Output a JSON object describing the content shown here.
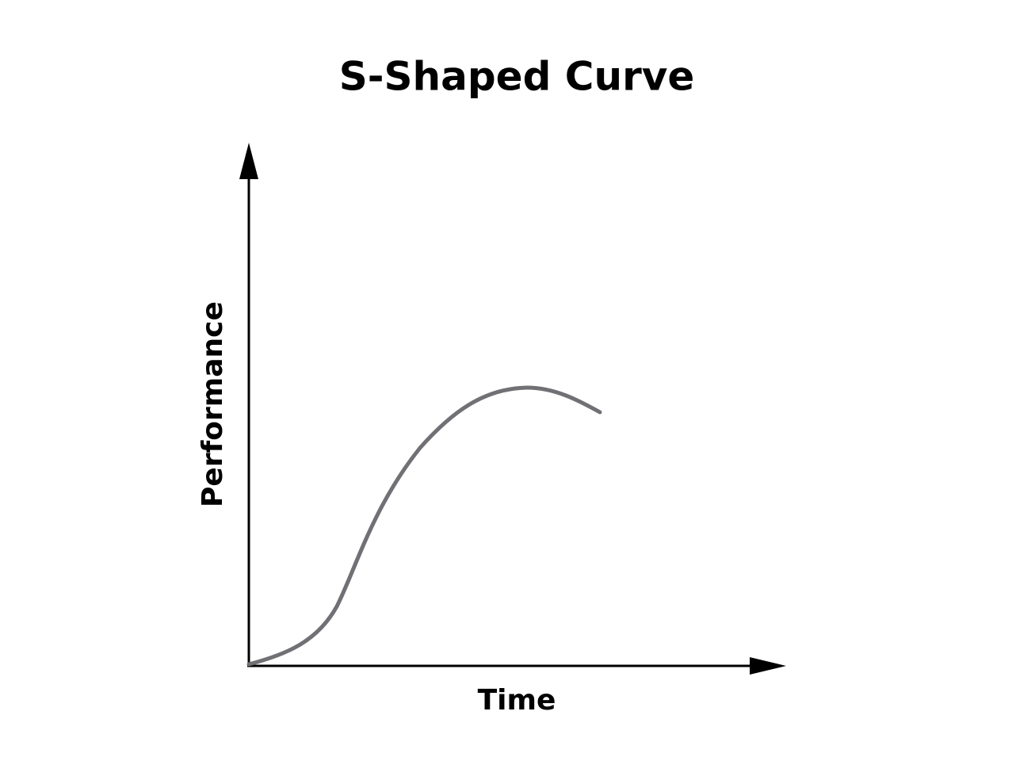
{
  "title": "S-Shaped Curve",
  "axes": {
    "x_label": "Time",
    "y_label": "Performance"
  }
}
